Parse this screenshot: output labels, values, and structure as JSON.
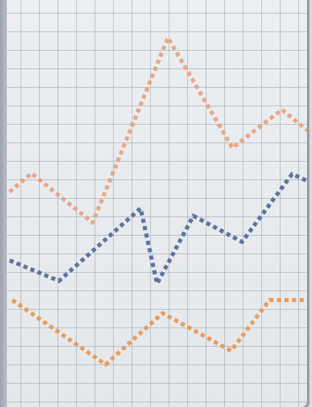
{
  "scene": {
    "background_tone": "#e7eaee",
    "paper_tone": "#eceff1",
    "grid_color": "#919aa5"
  },
  "illustration": {
    "series": [
      {
        "color": "#e8a07f",
        "opacity": 0.9
      },
      {
        "color": "#596d9d",
        "opacity": 0.95
      },
      {
        "color": "#e69a58",
        "opacity": 0.95
      }
    ]
  }
}
